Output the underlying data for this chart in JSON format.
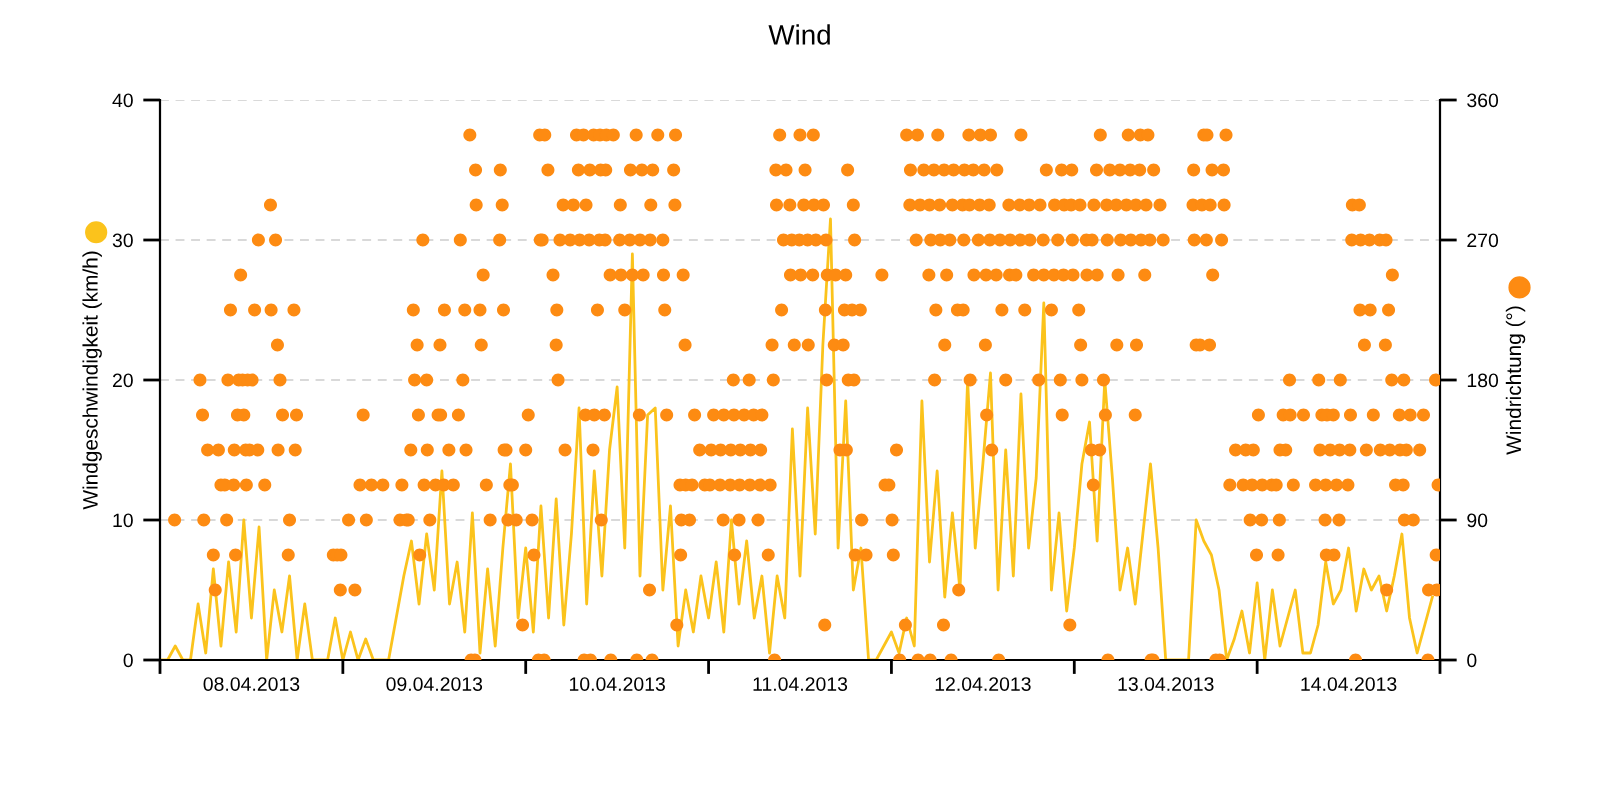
{
  "chart_data": {
    "type": "line",
    "title": "Wind",
    "ylabel": "Windgeschwindigkeit (km/h)",
    "y2label": "Windrichtung (°)",
    "xlim": [
      "2013-04-08",
      "2013-04-15"
    ],
    "xticks": [
      {
        "value": "2013-04-08",
        "label": null
      },
      {
        "value": "2013-04-08T12:00",
        "label": "08.04.2013"
      },
      {
        "value": "2013-04-09",
        "label": null
      },
      {
        "value": "2013-04-09T12:00",
        "label": "09.04.2013"
      },
      {
        "value": "2013-04-10",
        "label": null
      },
      {
        "value": "2013-04-10T12:00",
        "label": "10.04.2013"
      },
      {
        "value": "2013-04-11",
        "label": null
      },
      {
        "value": "2013-04-11T12:00",
        "label": "11.04.2013"
      },
      {
        "value": "2013-04-12",
        "label": null
      },
      {
        "value": "2013-04-12T12:00",
        "label": "12.04.2013"
      },
      {
        "value": "2013-04-13",
        "label": null
      },
      {
        "value": "2013-04-13T12:00",
        "label": "13.04.2013"
      },
      {
        "value": "2013-04-14",
        "label": null
      },
      {
        "value": "2013-04-14T12:00",
        "label": "14.04.2013"
      },
      {
        "value": "2013-04-15",
        "label": null
      }
    ],
    "ylim": [
      0,
      40
    ],
    "yticks": [
      0,
      10,
      20,
      30,
      40
    ],
    "y2lim": [
      0,
      360
    ],
    "y2ticks": [
      0,
      90,
      180,
      270,
      360
    ],
    "grid": "y",
    "series": [
      {
        "color": "#fbc31c",
        "x": [
          "2013-04-08T00:00",
          "2013-04-08T01:00",
          "2013-04-08T02:00",
          "2013-04-08T03:00",
          "2013-04-08T04:00",
          "2013-04-08T05:00",
          "2013-04-08T06:00",
          "2013-04-08T07:00",
          "2013-04-08T08:00",
          "2013-04-08T09:00",
          "2013-04-08T10:00",
          "2013-04-08T11:00",
          "2013-04-08T12:00",
          "2013-04-08T13:00",
          "2013-04-08T14:00",
          "2013-04-08T15:00",
          "2013-04-08T16:00",
          "2013-04-08T17:00",
          "2013-04-08T18:00",
          "2013-04-08T19:00",
          "2013-04-08T20:00",
          "2013-04-08T21:00",
          "2013-04-08T22:00",
          "2013-04-08T23:00",
          "2013-04-09T00:00",
          "2013-04-09T01:00",
          "2013-04-09T02:00",
          "2013-04-09T03:00",
          "2013-04-09T04:00",
          "2013-04-09T05:00",
          "2013-04-09T06:00",
          "2013-04-09T07:00",
          "2013-04-09T08:00",
          "2013-04-09T09:00",
          "2013-04-09T10:00",
          "2013-04-09T11:00",
          "2013-04-09T12:00",
          "2013-04-09T13:00",
          "2013-04-09T14:00",
          "2013-04-09T15:00",
          "2013-04-09T16:00",
          "2013-04-09T17:00",
          "2013-04-09T18:00",
          "2013-04-09T19:00",
          "2013-04-09T20:00",
          "2013-04-09T21:00",
          "2013-04-09T22:00",
          "2013-04-09T23:00",
          "2013-04-10T00:00",
          "2013-04-10T01:00",
          "2013-04-10T02:00",
          "2013-04-10T03:00",
          "2013-04-10T04:00",
          "2013-04-10T05:00",
          "2013-04-10T06:00",
          "2013-04-10T07:00",
          "2013-04-10T08:00",
          "2013-04-10T09:00",
          "2013-04-10T10:00",
          "2013-04-10T11:00",
          "2013-04-10T12:00",
          "2013-04-10T13:00",
          "2013-04-10T14:00",
          "2013-04-10T15:00",
          "2013-04-10T16:00",
          "2013-04-10T17:00",
          "2013-04-10T18:00",
          "2013-04-10T19:00",
          "2013-04-10T20:00",
          "2013-04-10T21:00",
          "2013-04-10T22:00",
          "2013-04-10T23:00",
          "2013-04-11T00:00",
          "2013-04-11T01:00",
          "2013-04-11T02:00",
          "2013-04-11T03:00",
          "2013-04-11T04:00",
          "2013-04-11T05:00",
          "2013-04-11T06:00",
          "2013-04-11T07:00",
          "2013-04-11T08:00",
          "2013-04-11T09:00",
          "2013-04-11T10:00",
          "2013-04-11T11:00",
          "2013-04-11T12:00",
          "2013-04-11T13:00",
          "2013-04-11T14:00",
          "2013-04-11T15:00",
          "2013-04-11T16:00",
          "2013-04-11T17:00",
          "2013-04-11T18:00",
          "2013-04-11T19:00",
          "2013-04-11T20:00",
          "2013-04-11T21:00",
          "2013-04-11T22:00",
          "2013-04-11T23:00",
          "2013-04-12T00:00",
          "2013-04-12T01:00",
          "2013-04-12T02:00",
          "2013-04-12T03:00",
          "2013-04-12T04:00",
          "2013-04-12T05:00",
          "2013-04-12T06:00",
          "2013-04-12T07:00",
          "2013-04-12T08:00",
          "2013-04-12T09:00",
          "2013-04-12T10:00",
          "2013-04-12T11:00",
          "2013-04-12T12:00",
          "2013-04-12T13:00",
          "2013-04-12T14:00",
          "2013-04-12T15:00",
          "2013-04-12T16:00",
          "2013-04-12T17:00",
          "2013-04-12T18:00",
          "2013-04-12T19:00",
          "2013-04-12T20:00",
          "2013-04-12T21:00",
          "2013-04-12T22:00",
          "2013-04-12T23:00",
          "2013-04-13T00:00",
          "2013-04-13T01:00",
          "2013-04-13T02:00",
          "2013-04-13T03:00",
          "2013-04-13T04:00",
          "2013-04-13T05:00",
          "2013-04-13T06:00",
          "2013-04-13T07:00",
          "2013-04-13T08:00",
          "2013-04-13T09:00",
          "2013-04-13T10:00",
          "2013-04-13T11:00",
          "2013-04-13T12:00",
          "2013-04-13T13:00",
          "2013-04-13T14:00",
          "2013-04-13T15:00",
          "2013-04-13T16:00",
          "2013-04-13T17:00",
          "2013-04-13T18:00",
          "2013-04-13T19:00",
          "2013-04-13T20:00",
          "2013-04-13T21:00",
          "2013-04-13T22:00",
          "2013-04-13T23:00",
          "2013-04-14T00:00",
          "2013-04-14T01:00",
          "2013-04-14T02:00",
          "2013-04-14T03:00",
          "2013-04-14T04:00",
          "2013-04-14T05:00",
          "2013-04-14T06:00",
          "2013-04-14T07:00",
          "2013-04-14T08:00",
          "2013-04-14T09:00",
          "2013-04-14T10:00",
          "2013-04-14T11:00",
          "2013-04-14T12:00",
          "2013-04-14T13:00",
          "2013-04-14T14:00",
          "2013-04-14T15:00",
          "2013-04-14T16:00",
          "2013-04-14T17:00",
          "2013-04-14T18:00",
          "2013-04-14T19:00",
          "2013-04-14T20:00",
          "2013-04-14T21:00",
          "2013-04-14T22:00",
          "2013-04-14T23:00"
        ],
        "values": [
          0,
          0,
          1,
          0,
          0,
          4,
          0.5,
          6.5,
          1,
          7,
          2,
          10,
          3,
          9.5,
          0,
          5,
          2,
          6,
          0,
          4,
          0,
          0,
          0,
          3,
          0,
          2,
          0,
          1.5,
          0,
          0,
          0,
          3,
          6,
          8.5,
          4,
          9,
          5,
          13.5,
          4,
          7,
          2,
          10.5,
          0.5,
          6.5,
          1,
          8,
          14,
          3,
          8,
          2,
          11,
          3,
          11.5,
          2.5,
          9,
          18,
          4,
          13.5,
          6,
          15,
          19.5,
          8,
          29,
          6,
          17.5,
          18,
          5,
          11,
          1,
          5,
          2,
          6,
          3,
          7,
          2,
          10,
          4,
          8.5,
          3,
          6,
          0.5,
          6,
          3,
          16.5,
          6,
          18,
          9,
          22.5,
          31.5,
          8,
          18.5,
          5,
          8,
          0,
          0,
          1,
          2,
          0.5,
          3,
          1,
          18.5,
          7,
          13.5,
          4.5,
          10.5,
          5,
          20,
          8,
          14,
          20.5,
          5,
          15,
          6,
          19,
          8,
          13,
          25.5,
          5,
          10.5,
          3.5,
          8,
          14,
          17,
          8.5,
          20,
          13,
          5,
          8,
          4,
          9,
          14,
          8,
          0,
          0,
          0,
          0,
          10,
          8.5,
          7.5,
          5,
          0,
          1.5,
          3.5,
          0.5,
          5.5,
          0,
          5,
          1,
          3,
          5,
          0.5,
          0.5,
          2.5,
          7,
          4,
          5,
          8,
          3.5,
          6.5,
          5,
          6,
          3.5,
          6,
          9,
          3,
          0.5,
          2.5,
          4.5
        ]
      },
      {
        "type": "scatter",
        "axis": "y2",
        "marker": "circle",
        "color": "#fd8b12",
        "x": [
          "2013-04-08T01:55",
          "2013-04-08T05:15",
          "2013-04-08T05:35",
          "2013-04-08T05:45",
          "2013-04-08T06:15",
          "2013-04-08T07:00",
          "2013-04-08T07:15",
          "2013-04-08T07:40",
          "2013-04-08T08:00",
          "2013-04-08T08:30",
          "2013-04-08T08:45",
          "2013-04-08T08:55",
          "2013-04-08T09:15",
          "2013-04-08T09:40",
          "2013-04-08T09:45",
          "2013-04-08T09:55",
          "2013-04-08T10:10",
          "2013-04-08T10:20",
          "2013-04-08T10:35",
          "2013-04-08T10:50",
          "2013-04-08T11:00",
          "2013-04-08T11:15",
          "2013-04-08T11:20",
          "2013-04-08T11:30",
          "2013-04-08T11:45",
          "2013-04-08T12:05",
          "2013-04-08T12:25",
          "2013-04-08T12:50",
          "2013-04-08T12:55",
          "2013-04-08T13:45",
          "2013-04-08T14:30",
          "2013-04-08T14:35",
          "2013-04-08T15:10",
          "2013-04-08T15:25",
          "2013-04-08T15:30",
          "2013-04-08T15:45",
          "2013-04-08T16:05",
          "2013-04-08T16:50",
          "2013-04-08T17:00",
          "2013-04-08T17:35",
          "2013-04-08T17:45",
          "2013-04-08T17:55",
          "2013-04-08T22:45",
          "2013-04-08T23:15",
          "2013-04-08T23:40",
          "2013-04-08T23:45",
          "2013-04-09T00:45",
          "2013-04-09T01:35",
          "2013-04-09T02:15",
          "2013-04-09T02:40",
          "2013-04-09T03:05",
          "2013-04-09T03:45",
          "2013-04-09T05:15",
          "2013-04-09T07:30",
          "2013-04-09T07:45",
          "2013-04-09T08:20",
          "2013-04-09T08:35",
          "2013-04-09T08:55",
          "2013-04-09T09:15",
          "2013-04-09T09:25",
          "2013-04-09T09:45",
          "2013-04-09T09:55",
          "2013-04-09T10:05",
          "2013-04-09T10:30",
          "2013-04-09T10:40",
          "2013-04-09T11:00",
          "2013-04-09T11:05",
          "2013-04-09T11:25",
          "2013-04-09T12:10",
          "2013-04-09T12:30",
          "2013-04-09T12:45",
          "2013-04-09T12:50",
          "2013-04-09T13:15",
          "2013-04-09T13:20",
          "2013-04-09T13:55",
          "2013-04-09T14:30",
          "2013-04-09T15:10",
          "2013-04-09T15:25",
          "2013-04-09T15:45",
          "2013-04-09T16:00",
          "2013-04-09T16:10",
          "2013-04-09T16:40",
          "2013-04-09T16:50",
          "2013-04-09T17:20",
          "2013-04-09T17:25",
          "2013-04-09T17:30",
          "2013-04-09T18:00",
          "2013-04-09T18:10",
          "2013-04-09T18:25",
          "2013-04-09T18:50",
          "2013-04-09T19:20",
          "2013-04-09T20:35",
          "2013-04-09T20:40",
          "2013-04-09T20:55",
          "2013-04-09T21:05",
          "2013-04-09T21:10",
          "2013-04-09T21:25",
          "2013-04-09T21:40",
          "2013-04-09T21:55",
          "2013-04-09T22:15",
          "2013-04-09T22:45",
          "2013-04-09T23:35",
          "2013-04-10T00:00",
          "2013-04-10T00:20",
          "2013-04-10T00:50",
          "2013-04-10T01:05",
          "2013-04-10T01:40",
          "2013-04-10T01:50",
          "2013-04-10T01:55",
          "2013-04-10T02:10",
          "2013-04-10T02:25",
          "2013-04-10T02:30",
          "2013-04-10T02:55",
          "2013-04-10T03:35",
          "2013-04-10T04:00",
          "2013-04-10T04:05",
          "2013-04-10T04:15",
          "2013-04-10T04:30",
          "2013-04-10T04:55",
          "2013-04-10T05:10",
          "2013-04-10T05:50",
          "2013-04-10T06:15",
          "2013-04-10T06:40",
          "2013-04-10T06:55",
          "2013-04-10T07:05",
          "2013-04-10T07:35",
          "2013-04-10T07:40",
          "2013-04-10T07:50",
          "2013-04-10T07:55",
          "2013-04-10T08:20",
          "2013-04-10T08:25",
          "2013-04-10T08:30",
          "2013-04-10T08:50",
          "2013-04-10T08:55",
          "2013-04-10T09:00",
          "2013-04-10T09:25",
          "2013-04-10T09:40",
          "2013-04-10T09:45",
          "2013-04-10T09:50",
          "2013-04-10T09:55",
          "2013-04-10T10:20",
          "2013-04-10T10:25",
          "2013-04-10T10:30",
          "2013-04-10T10:35",
          "2013-04-10T11:05",
          "2013-04-10T11:10",
          "2013-04-10T11:30",
          "2013-04-10T12:20",
          "2013-04-10T12:25",
          "2013-04-10T12:30",
          "2013-04-10T13:00",
          "2013-04-10T13:40",
          "2013-04-10T13:45",
          "2013-04-10T14:00",
          "2013-04-10T14:30",
          "2013-04-10T14:35",
          "2013-04-10T14:55",
          "2013-04-10T15:00",
          "2013-04-10T15:15",
          "2013-04-10T15:25",
          "2013-04-10T16:15",
          "2013-04-10T16:20",
          "2013-04-10T16:25",
          "2013-04-10T16:35",
          "2013-04-10T16:40",
          "2013-04-10T17:20",
          "2013-04-10T18:00",
          "2013-04-10T18:05",
          "2013-04-10T18:15",
          "2013-04-10T18:30",
          "2013-04-10T19:25",
          "2013-04-10T19:35",
          "2013-04-10T19:40",
          "2013-04-10T19:50",
          "2013-04-10T20:15",
          "2013-04-10T20:20",
          "2013-04-10T20:25",
          "2013-04-10T20:40",
          "2013-04-10T20:55",
          "2013-04-10T21:00",
          "2013-04-10T21:30",
          "2013-04-10T21:50",
          "2013-04-10T22:10",
          "2013-04-10T22:50",
          "2013-04-10T23:30",
          "2013-04-11T00:10",
          "2013-04-11T00:20",
          "2013-04-11T00:40",
          "2013-04-11T01:30",
          "2013-04-11T01:35",
          "2013-04-11T01:55",
          "2013-04-11T02:00",
          "2013-04-11T02:50",
          "2013-04-11T02:55",
          "2013-04-11T03:15",
          "2013-04-11T03:20",
          "2013-04-11T03:25",
          "2013-04-11T04:00",
          "2013-04-11T04:05",
          "2013-04-11T04:10",
          "2013-04-11T04:40",
          "2013-04-11T05:20",
          "2013-04-11T05:25",
          "2013-04-11T05:30",
          "2013-04-11T05:55",
          "2013-04-11T06:30",
          "2013-04-11T06:45",
          "2013-04-11T06:50",
          "2013-04-11T07:00",
          "2013-04-11T07:50",
          "2013-04-11T08:05",
          "2013-04-11T08:20",
          "2013-04-11T08:30",
          "2013-04-11T08:40",
          "2013-04-11T08:50",
          "2013-04-11T08:55",
          "2013-04-11T09:20",
          "2013-04-11T09:35",
          "2013-04-11T09:50",
          "2013-04-11T10:10",
          "2013-04-11T10:40",
          "2013-04-11T10:45",
          "2013-04-11T10:55",
          "2013-04-11T11:15",
          "2013-04-11T11:55",
          "2013-04-11T12:00",
          "2013-04-11T12:05",
          "2013-04-11T12:30",
          "2013-04-11T12:40",
          "2013-04-11T13:00",
          "2013-04-11T13:05",
          "2013-04-11T13:40",
          "2013-04-11T13:45",
          "2013-04-11T13:50",
          "2013-04-11T14:05",
          "2013-04-11T15:05",
          "2013-04-11T15:15",
          "2013-04-11T15:20",
          "2013-04-11T15:25",
          "2013-04-11T15:30",
          "2013-04-11T15:35",
          "2013-04-11T16:30",
          "2013-04-11T16:40",
          "2013-04-11T17:15",
          "2013-04-11T17:40",
          "2013-04-11T17:50",
          "2013-04-11T18:00",
          "2013-04-11T18:05",
          "2013-04-11T18:15",
          "2013-04-11T18:20",
          "2013-04-11T18:50",
          "2013-04-11T19:00",
          "2013-04-11T19:05",
          "2013-04-11T19:10",
          "2013-04-11T19:15",
          "2013-04-11T19:55",
          "2013-04-11T20:05",
          "2013-04-11T20:40",
          "2013-04-11T22:45",
          "2013-04-11T23:10",
          "2013-04-11T23:40",
          "2013-04-12T00:05",
          "2013-04-12T00:15",
          "2013-04-12T00:40",
          "2013-04-12T01:05",
          "2013-04-12T01:50",
          "2013-04-12T02:00",
          "2013-04-12T02:25",
          "2013-04-12T02:30",
          "2013-04-12T03:15",
          "2013-04-12T03:25",
          "2013-04-12T03:30",
          "2013-04-12T03:45",
          "2013-04-12T04:15",
          "2013-04-12T04:55",
          "2013-04-12T05:00",
          "2013-04-12T05:05",
          "2013-04-12T05:10",
          "2013-04-12T05:35",
          "2013-04-12T05:40",
          "2013-04-12T05:50",
          "2013-04-12T06:05",
          "2013-04-12T06:20",
          "2013-04-12T06:25",
          "2013-04-12T06:50",
          "2013-04-12T06:55",
          "2013-04-12T07:00",
          "2013-04-12T07:15",
          "2013-04-12T07:40",
          "2013-04-12T07:50",
          "2013-04-12T08:00",
          "2013-04-12T08:10",
          "2013-04-12T08:40",
          "2013-04-12T08:50",
          "2013-04-12T09:20",
          "2013-04-12T09:25",
          "2013-04-12T09:30",
          "2013-04-12T09:35",
          "2013-04-12T10:10",
          "2013-04-12T10:15",
          "2013-04-12T10:20",
          "2013-04-12T10:45",
          "2013-04-12T10:50",
          "2013-04-12T11:25",
          "2013-04-12T11:35",
          "2013-04-12T11:40",
          "2013-04-12T12:10",
          "2013-04-12T12:20",
          "2013-04-12T12:25",
          "2013-04-12T12:30",
          "2013-04-12T12:50",
          "2013-04-12T12:55",
          "2013-04-12T13:00",
          "2013-04-12T13:10",
          "2013-04-12T13:45",
          "2013-04-12T13:50",
          "2013-04-12T14:05",
          "2013-04-12T14:15",
          "2013-04-12T14:30",
          "2013-04-12T15:00",
          "2013-04-12T15:25",
          "2013-04-12T15:30",
          "2013-04-12T15:35",
          "2013-04-12T16:20",
          "2013-04-12T16:50",
          "2013-04-12T16:55",
          "2013-04-12T17:00",
          "2013-04-12T17:30",
          "2013-04-12T18:05",
          "2013-04-12T18:10",
          "2013-04-12T18:40",
          "2013-04-12T19:20",
          "2013-04-12T19:30",
          "2013-04-12T19:55",
          "2013-04-12T20:00",
          "2013-04-12T20:20",
          "2013-04-12T21:00",
          "2013-04-12T21:20",
          "2013-04-12T21:25",
          "2013-04-12T21:50",
          "2013-04-12T22:10",
          "2013-04-12T22:20",
          "2013-04-12T22:25",
          "2013-04-12T22:35",
          "2013-04-12T22:40",
          "2013-04-12T23:25",
          "2013-04-12T23:35",
          "2013-04-12T23:40",
          "2013-04-12T23:45",
          "2013-04-12T23:50",
          "2013-04-13T00:35",
          "2013-04-13T00:45",
          "2013-04-13T00:50",
          "2013-04-13T01:00",
          "2013-04-13T01:35",
          "2013-04-13T01:40",
          "2013-04-13T02:15",
          "2013-04-13T02:20",
          "2013-04-13T02:30",
          "2013-04-13T02:35",
          "2013-04-13T02:55",
          "2013-04-13T03:00",
          "2013-04-13T03:20",
          "2013-04-13T03:25",
          "2013-04-13T03:50",
          "2013-04-13T04:05",
          "2013-04-13T04:15",
          "2013-04-13T04:20",
          "2013-04-13T04:25",
          "2013-04-13T04:40",
          "2013-04-13T05:30",
          "2013-04-13T05:35",
          "2013-04-13T05:45",
          "2013-04-13T06:00",
          "2013-04-13T06:05",
          "2013-04-13T06:50",
          "2013-04-13T07:05",
          "2013-04-13T07:20",
          "2013-04-13T07:25",
          "2013-04-13T08:00",
          "2013-04-13T08:05",
          "2013-04-13T08:10",
          "2013-04-13T08:35",
          "2013-04-13T08:40",
          "2013-04-13T08:45",
          "2013-04-13T09:15",
          "2013-04-13T09:25",
          "2013-04-13T09:40",
          "2013-04-13T09:55",
          "2013-04-13T10:05",
          "2013-04-13T10:20",
          "2013-04-13T10:25",
          "2013-04-13T11:15",
          "2013-04-13T11:40",
          "2013-04-13T15:35",
          "2013-04-13T15:40",
          "2013-04-13T15:45",
          "2013-04-13T16:00",
          "2013-04-13T16:30",
          "2013-04-13T16:45",
          "2013-04-13T17:00",
          "2013-04-13T17:20",
          "2013-04-13T17:25",
          "2013-04-13T17:45",
          "2013-04-13T17:50",
          "2013-04-13T18:05",
          "2013-04-13T18:10",
          "2013-04-13T18:35",
          "2013-04-13T19:05",
          "2013-04-13T19:20",
          "2013-04-13T19:35",
          "2013-04-13T19:40",
          "2013-04-13T19:55",
          "2013-04-13T20:25",
          "2013-04-13T21:10",
          "2013-04-13T22:10",
          "2013-04-13T22:30",
          "2013-04-13T23:05",
          "2013-04-13T23:20",
          "2013-04-13T23:30",
          "2013-04-13T23:55",
          "2013-04-14T00:10",
          "2013-04-14T00:35",
          "2013-04-14T00:40",
          "2013-04-14T01:55",
          "2013-04-14T02:30",
          "2013-04-14T02:45",
          "2013-04-14T02:55",
          "2013-04-14T03:00",
          "2013-04-14T03:25",
          "2013-04-14T03:45",
          "2013-04-14T04:15",
          "2013-04-14T04:20",
          "2013-04-14T04:45",
          "2013-04-14T06:05",
          "2013-04-14T07:40",
          "2013-04-14T08:05",
          "2013-04-14T08:15",
          "2013-04-14T08:30",
          "2013-04-14T08:55",
          "2013-04-14T09:00",
          "2013-04-14T09:05",
          "2013-04-14T09:10",
          "2013-04-14T09:35",
          "2013-04-14T10:00",
          "2013-04-14T10:05",
          "2013-04-14T10:25",
          "2013-04-14T10:45",
          "2013-04-14T10:50",
          "2013-04-14T10:55",
          "2013-04-14T11:55",
          "2013-04-14T12:10",
          "2013-04-14T12:15",
          "2013-04-14T12:25",
          "2013-04-14T12:30",
          "2013-04-14T12:55",
          "2013-04-14T13:25",
          "2013-04-14T13:30",
          "2013-04-14T13:35",
          "2013-04-14T14:05",
          "2013-04-14T14:20",
          "2013-04-14T14:45",
          "2013-04-14T14:50",
          "2013-04-14T15:15",
          "2013-04-14T16:05",
          "2013-04-14T16:10",
          "2013-04-14T16:50",
          "2013-04-14T16:55",
          "2013-04-14T17:00",
          "2013-04-14T17:15",
          "2013-04-14T17:25",
          "2013-04-14T17:40",
          "2013-04-14T17:45",
          "2013-04-14T18:10",
          "2013-04-14T18:40",
          "2013-04-14T18:45",
          "2013-04-14T19:10",
          "2013-04-14T19:15",
          "2013-04-14T19:20",
          "2013-04-14T19:35",
          "2013-04-14T20:05",
          "2013-04-14T20:30",
          "2013-04-14T21:20",
          "2013-04-14T21:50",
          "2013-04-14T22:25",
          "2013-04-14T22:30",
          "2013-04-14T23:25",
          "2013-04-14T23:30",
          "2013-04-14T23:35",
          "2013-04-14T23:45"
        ],
        "values": [
          90,
          180,
          157.5,
          90,
          135,
          67.5,
          45,
          135,
          112.5,
          112.5,
          90,
          180,
          225,
          112.5,
          135,
          67.5,
          157.5,
          180,
          247.5,
          180,
          157.5,
          135,
          112.5,
          180,
          135,
          180,
          225,
          135,
          270,
          112.5,
          292.5,
          225,
          270,
          202.5,
          135,
          180,
          157.5,
          67.5,
          90,
          225,
          135,
          157.5,
          67.5,
          67.5,
          45,
          67.5,
          90,
          45,
          112.5,
          157.5,
          90,
          112.5,
          112.5,
          90,
          112.5,
          90,
          90,
          135,
          225,
          180,
          202.5,
          157.5,
          67.5,
          270,
          112.5,
          180,
          135,
          90,
          112.5,
          157.5,
          202.5,
          157.5,
          112.5,
          225,
          135,
          112.5,
          157.5,
          270,
          180,
          225,
          135,
          337.5,
          0,
          0,
          315,
          292.5,
          225,
          202.5,
          247.5,
          112.5,
          90,
          270,
          315,
          292.5,
          225,
          135,
          135,
          90,
          112.5,
          112.5,
          90,
          22.5,
          135,
          157.5,
          90,
          67.5,
          0,
          337.5,
          270,
          270,
          0,
          337.5,
          315,
          247.5,
          202.5,
          225,
          180,
          270,
          292.5,
          135,
          270,
          292.5,
          337.5,
          315,
          270,
          337.5,
          0,
          157.5,
          292.5,
          270,
          315,
          0,
          135,
          337.5,
          157.5,
          225,
          270,
          337.5,
          315,
          90,
          157.5,
          270,
          315,
          337.5,
          247.5,
          0,
          337.5,
          270,
          292.5,
          247.5,
          225,
          270,
          315,
          247.5,
          337.5,
          0,
          157.5,
          270,
          315,
          247.5,
          45,
          270,
          292.5,
          0,
          315,
          337.5,
          270,
          247.5,
          225,
          157.5,
          315,
          292.5,
          337.5,
          22.5,
          112.5,
          67.5,
          90,
          247.5,
          202.5,
          112.5,
          90,
          112.5,
          157.5,
          135,
          112.5,
          112.5,
          135,
          157.5,
          112.5,
          135,
          90,
          157.5,
          112.5,
          135,
          180,
          157.5,
          67.5,
          90,
          112.5,
          135,
          157.5,
          180,
          112.5,
          135,
          157.5,
          90,
          112.5,
          135,
          157.5,
          67.5,
          112.5,
          202.5,
          180,
          0,
          315,
          292.5,
          337.5,
          225,
          270,
          315,
          292.5,
          247.5,
          270,
          202.5,
          270,
          337.5,
          247.5,
          292.5,
          315,
          270,
          202.5,
          247.5,
          337.5,
          292.5,
          270,
          292.5,
          22.5,
          225,
          270,
          180,
          247.5,
          202.5,
          247.5,
          135,
          202.5,
          225,
          247.5,
          135,
          315,
          180,
          225,
          292.5,
          180,
          270,
          67.5,
          225,
          90,
          67.5,
          247.5,
          112.5,
          112.5,
          90,
          67.5,
          135,
          0,
          22.5,
          337.5,
          292.5,
          315,
          270,
          337.5,
          0,
          292.5,
          315,
          247.5,
          292.5,
          0,
          270,
          315,
          180,
          225,
          337.5,
          292.5,
          270,
          22.5,
          315,
          202.5,
          247.5,
          270,
          0,
          292.5,
          315,
          225,
          45,
          292.5,
          225,
          270,
          315,
          337.5,
          292.5,
          180,
          315,
          247.5,
          270,
          292.5,
          337.5,
          315,
          202.5,
          247.5,
          157.5,
          292.5,
          270,
          337.5,
          135,
          247.5,
          315,
          0,
          270,
          225,
          180,
          292.5,
          247.5,
          270,
          247.5,
          292.5,
          270,
          337.5,
          225,
          292.5,
          270,
          247.5,
          180,
          292.5,
          270,
          247.5,
          315,
          225,
          247.5,
          292.5,
          270,
          180,
          315,
          157.5,
          247.5,
          292.5,
          22.5,
          292.5,
          315,
          270,
          247.5,
          225,
          292.5,
          202.5,
          180,
          270,
          247.5,
          135,
          270,
          112.5,
          292.5,
          315,
          247.5,
          135,
          337.5,
          180,
          157.5,
          292.5,
          270,
          0,
          315,
          292.5,
          202.5,
          247.5,
          315,
          270,
          292.5,
          337.5,
          315,
          270,
          157.5,
          292.5,
          202.5,
          315,
          337.5,
          270,
          247.5,
          292.5,
          337.5,
          270,
          0,
          0,
          315,
          292.5,
          270,
          292.5,
          315,
          270,
          202.5,
          202.5,
          292.5,
          337.5,
          270,
          337.5,
          202.5,
          292.5,
          315,
          247.5,
          0,
          0,
          270,
          315,
          292.5,
          337.5,
          112.5,
          135,
          112.5,
          135,
          90,
          112.5,
          135,
          67.5,
          157.5,
          90,
          112.5,
          112.5,
          112.5,
          67.5,
          90,
          135,
          157.5,
          135,
          180,
          157.5,
          112.5,
          157.5,
          112.5,
          180,
          135,
          157.5,
          90,
          112.5,
          67.5,
          157.5,
          135,
          157.5,
          67.5,
          112.5,
          90,
          135,
          180,
          112.5,
          135,
          157.5,
          270,
          292.5,
          0,
          292.5,
          225,
          270,
          202.5,
          135,
          270,
          225,
          157.5,
          270,
          135,
          202.5,
          270,
          45,
          225,
          135,
          180,
          247.5,
          112.5,
          157.5,
          135,
          112.5,
          180,
          90,
          135,
          157.5,
          90,
          135,
          157.5,
          0,
          45,
          180,
          67.5,
          45,
          112.5
        ]
      }
    ]
  }
}
